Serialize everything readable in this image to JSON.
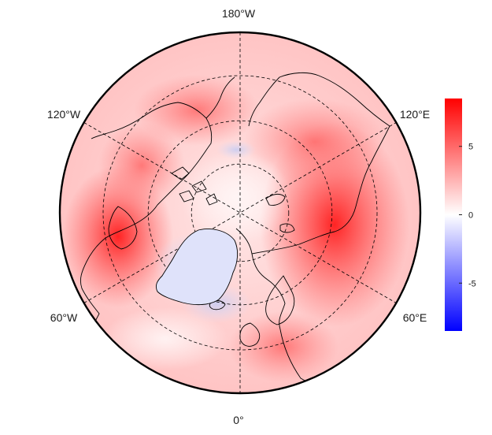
{
  "map": {
    "projection": "north-polar-stereographic",
    "longitude_labels": {
      "top": "180°W",
      "bottom": "0°",
      "upper_left": "120°W",
      "upper_right": "120°E",
      "lower_left": "60°W",
      "lower_right": "60°E"
    },
    "graticule": "dashed",
    "colorbar": {
      "min": -8.5,
      "max": 8.5,
      "ticks": [
        "5",
        "0",
        "-5"
      ],
      "tick_values": [
        5,
        0,
        -5
      ],
      "colors": {
        "low": "#0000ff",
        "mid": "#ffffff",
        "high": "#ff0000"
      }
    }
  }
}
